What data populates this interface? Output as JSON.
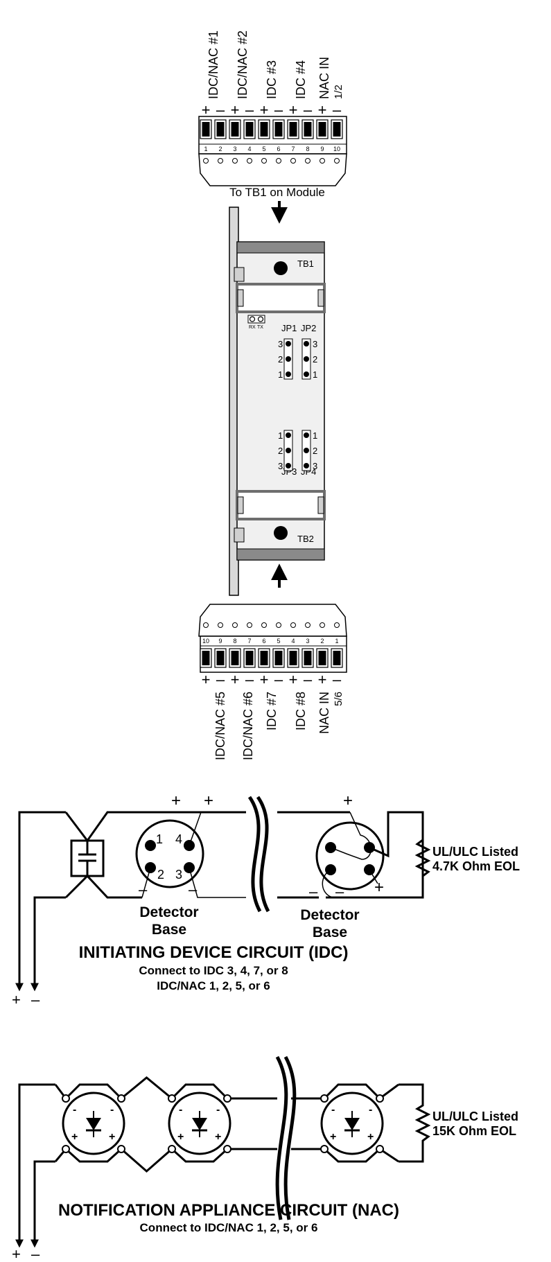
{
  "top_terminal": {
    "labels": [
      "IDC/NAC #1",
      "IDC/NAC #2",
      "IDC #3",
      "IDC #4",
      "NAC IN"
    ],
    "nac_sub": "1/2",
    "numbers": [
      "1",
      "2",
      "3",
      "4",
      "5",
      "6",
      "7",
      "8",
      "9",
      "10"
    ],
    "polarity": [
      "+",
      "–"
    ],
    "caption": "To TB1 on Module"
  },
  "module": {
    "tb1": "TB1",
    "tb2": "TB2",
    "rx": "RX",
    "tx": "TX",
    "jp1": "JP1",
    "jp2": "JP2",
    "jp3": "JP3",
    "jp4": "JP4",
    "pin_up": [
      "3",
      "2",
      "1"
    ],
    "pin_down": [
      "1",
      "2",
      "3"
    ]
  },
  "bottom_terminal": {
    "labels": [
      "IDC/NAC #5",
      "IDC/NAC #6",
      "IDC #7",
      "IDC #8",
      "NAC IN"
    ],
    "nac_sub": "5/6",
    "numbers": [
      "10",
      "9",
      "8",
      "7",
      "6",
      "5",
      "4",
      "3",
      "2",
      "1"
    ],
    "polarity": [
      "+",
      "–"
    ]
  },
  "idc": {
    "plus": "+",
    "minus": "–",
    "pins": [
      "1",
      "4",
      "2",
      "3"
    ],
    "detector1": [
      "Detector",
      "Base"
    ],
    "detector2": [
      "Detector",
      "Base"
    ],
    "eol": [
      "UL/ULC Listed",
      "4.7K Ohm EOL"
    ],
    "title": "INITIATING DEVICE CIRCUIT (IDC)",
    "sub1": "Connect to IDC  3, 4, 7, or 8",
    "sub2": "IDC/NAC 1, 2, 5, or 6"
  },
  "nac": {
    "plus": "+",
    "minus": "-",
    "eol": [
      "UL/ULC Listed",
      "15K Ohm  EOL"
    ],
    "title": "NOTIFICATION APPLIANCE CIRCUIT (NAC)",
    "sub": "Connect to IDC/NAC 1, 2, 5, or 6",
    "plus_bottom": "+",
    "minus_bottom": "–"
  }
}
